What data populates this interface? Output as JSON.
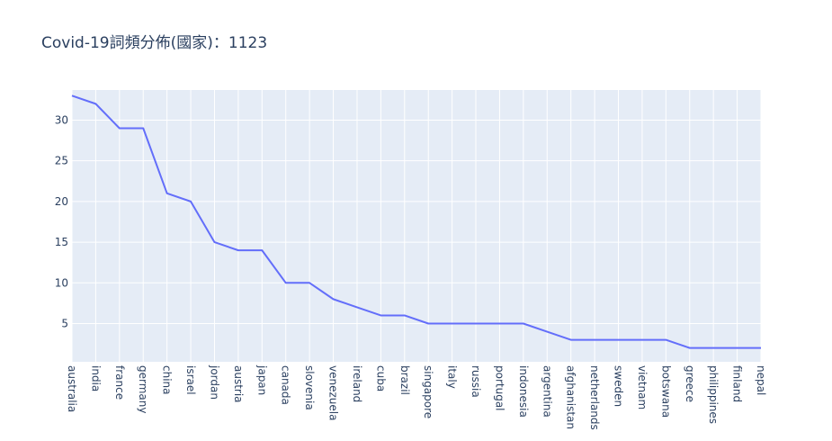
{
  "chart_data": {
    "type": "line",
    "title": "Covid-19詞頻分佈(國家)：1123",
    "xlabel": "",
    "ylabel": "",
    "categories": [
      "australia",
      "india",
      "france",
      "germany",
      "china",
      "israel",
      "jordan",
      "austria",
      "japan",
      "canada",
      "slovenia",
      "venezuela",
      "ireland",
      "cuba",
      "brazil",
      "singapore",
      "italy",
      "russia",
      "portugal",
      "indonesia",
      "argentina",
      "afghanistan",
      "netherlands",
      "sweden",
      "vietnam",
      "botswana",
      "greece",
      "philippines",
      "finland",
      "nepal"
    ],
    "values": [
      33,
      32,
      29,
      29,
      21,
      20,
      15,
      14,
      14,
      10,
      10,
      8,
      7,
      6,
      6,
      5,
      5,
      5,
      5,
      5,
      4,
      3,
      3,
      3,
      3,
      3,
      2,
      2,
      2,
      2
    ],
    "yticks": [
      5,
      10,
      15,
      20,
      25,
      30
    ],
    "ylim": [
      0.3,
      33.7
    ],
    "grid": true,
    "line_color": "#636efa",
    "plot_bg": "#e5ecf6",
    "grid_color": "#ffffff"
  }
}
